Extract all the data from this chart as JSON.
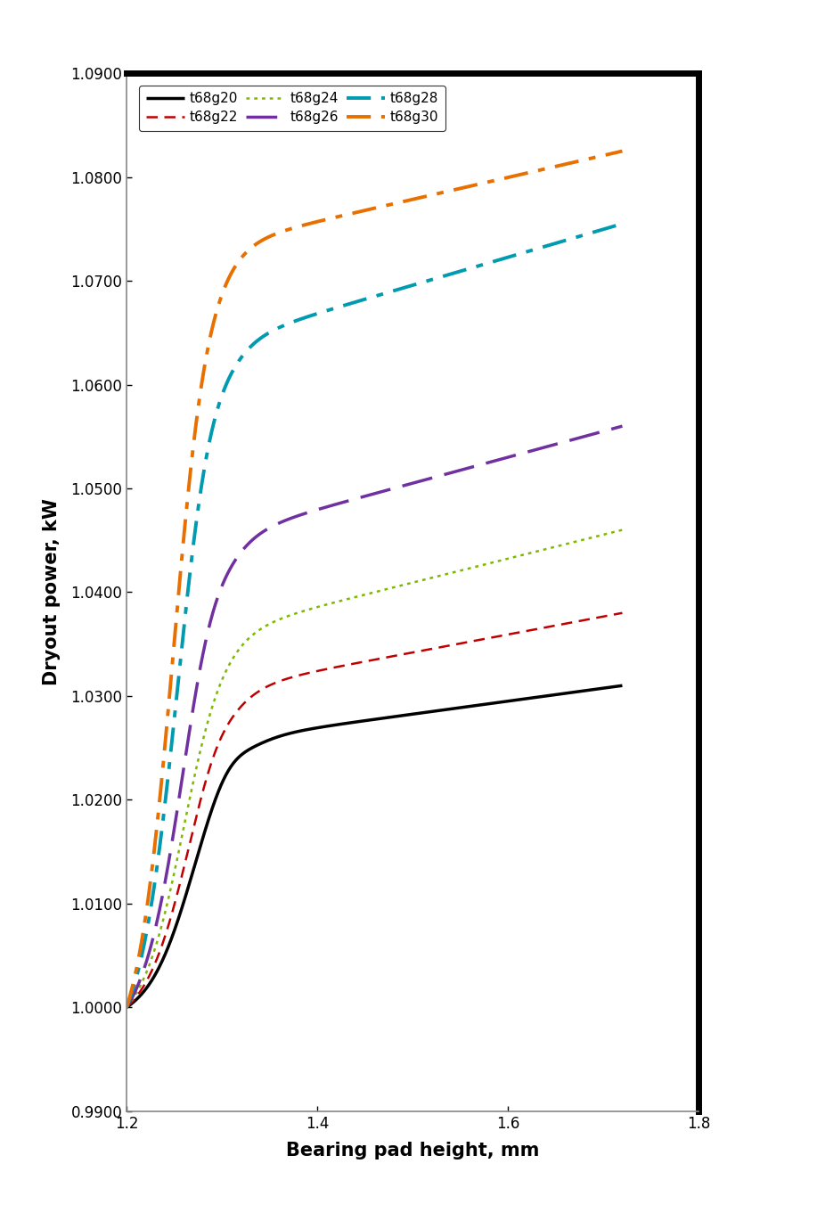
{
  "xlabel": "Bearing pad height, mm",
  "ylabel": "Dryout power, kW",
  "xlim": [
    1.2,
    1.8
  ],
  "ylim": [
    0.99,
    1.09
  ],
  "xticks": [
    1.2,
    1.4,
    1.6,
    1.8
  ],
  "yticks": [
    0.99,
    1.0,
    1.01,
    1.02,
    1.03,
    1.04,
    1.05,
    1.06,
    1.07,
    1.08,
    1.09
  ],
  "series": [
    {
      "label": "t68g20",
      "color": "#000000",
      "lw": 2.5
    },
    {
      "label": "t68g22",
      "color": "#C00000",
      "lw": 1.8
    },
    {
      "label": "t68g24",
      "color": "#7FB800",
      "lw": 1.8
    },
    {
      "label": "t68g26",
      "color": "#7030A0",
      "lw": 2.5
    },
    {
      "label": "t68g28",
      "color": "#009BB0",
      "lw": 2.8
    },
    {
      "label": "t68g30",
      "color": "#E87000",
      "lw": 2.8
    }
  ],
  "ls_map": [
    [
      0,
      []
    ],
    [
      0,
      [
        5,
        3
      ]
    ],
    [
      0,
      [
        1.5,
        2
      ]
    ],
    [
      0,
      [
        10,
        4
      ]
    ],
    [
      0,
      [
        7,
        3,
        2,
        3
      ]
    ],
    [
      0,
      [
        7,
        3,
        2,
        3
      ]
    ]
  ]
}
